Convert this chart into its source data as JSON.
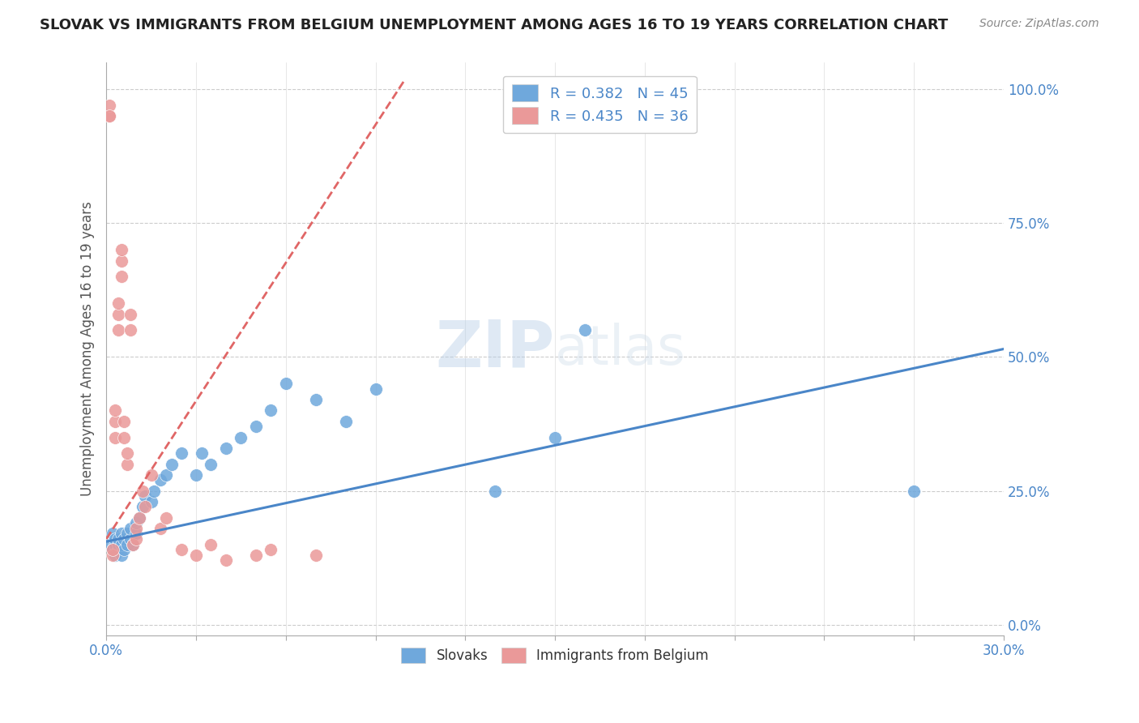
{
  "title": "SLOVAK VS IMMIGRANTS FROM BELGIUM UNEMPLOYMENT AMONG AGES 16 TO 19 YEARS CORRELATION CHART",
  "source_text": "Source: ZipAtlas.com",
  "ylabel": "Unemployment Among Ages 16 to 19 years",
  "right_yticks": [
    0.0,
    0.25,
    0.5,
    0.75,
    1.0
  ],
  "right_yticklabels": [
    "0.0%",
    "25.0%",
    "50.0%",
    "75.0%",
    "100.0%"
  ],
  "legend1_label": "R = 0.382   N = 45",
  "legend2_label": "R = 0.435   N = 36",
  "legend_bottom_label1": "Slovaks",
  "legend_bottom_label2": "Immigrants from Belgium",
  "blue_color": "#6fa8dc",
  "pink_color": "#ea9999",
  "blue_line_color": "#4a86c8",
  "pink_line_color": "#e06666",
  "watermark_text": "ZIPAtlas",
  "xlim": [
    0.0,
    0.3
  ],
  "ylim": [
    -0.02,
    1.05
  ],
  "blue_scatter_x": [
    0.001,
    0.002,
    0.002,
    0.003,
    0.003,
    0.003,
    0.004,
    0.004,
    0.004,
    0.005,
    0.005,
    0.005,
    0.006,
    0.006,
    0.007,
    0.007,
    0.008,
    0.008,
    0.009,
    0.01,
    0.01,
    0.011,
    0.012,
    0.013,
    0.015,
    0.016,
    0.018,
    0.02,
    0.022,
    0.025,
    0.03,
    0.032,
    0.035,
    0.04,
    0.045,
    0.05,
    0.055,
    0.06,
    0.07,
    0.08,
    0.09,
    0.13,
    0.15,
    0.16,
    0.27
  ],
  "blue_scatter_y": [
    0.15,
    0.14,
    0.17,
    0.15,
    0.13,
    0.16,
    0.14,
    0.15,
    0.16,
    0.13,
    0.15,
    0.17,
    0.14,
    0.16,
    0.15,
    0.17,
    0.16,
    0.18,
    0.15,
    0.17,
    0.19,
    0.2,
    0.22,
    0.24,
    0.23,
    0.25,
    0.27,
    0.28,
    0.3,
    0.32,
    0.28,
    0.32,
    0.3,
    0.33,
    0.35,
    0.37,
    0.4,
    0.45,
    0.42,
    0.38,
    0.44,
    0.25,
    0.35,
    0.55,
    0.25
  ],
  "pink_scatter_x": [
    0.001,
    0.001,
    0.001,
    0.002,
    0.002,
    0.003,
    0.003,
    0.003,
    0.004,
    0.004,
    0.004,
    0.005,
    0.005,
    0.005,
    0.006,
    0.006,
    0.007,
    0.007,
    0.008,
    0.008,
    0.009,
    0.01,
    0.01,
    0.011,
    0.012,
    0.013,
    0.015,
    0.018,
    0.02,
    0.025,
    0.03,
    0.035,
    0.04,
    0.05,
    0.055,
    0.07
  ],
  "pink_scatter_y": [
    0.95,
    0.97,
    0.95,
    0.13,
    0.14,
    0.35,
    0.38,
    0.4,
    0.55,
    0.58,
    0.6,
    0.65,
    0.68,
    0.7,
    0.35,
    0.38,
    0.3,
    0.32,
    0.55,
    0.58,
    0.15,
    0.16,
    0.18,
    0.2,
    0.25,
    0.22,
    0.28,
    0.18,
    0.2,
    0.14,
    0.13,
    0.15,
    0.12,
    0.13,
    0.14,
    0.13
  ],
  "blue_trend_x0": 0.0,
  "blue_trend_x1": 0.3,
  "blue_trend_y0": 0.155,
  "blue_trend_y1": 0.515,
  "pink_trend_x0": 0.0,
  "pink_trend_x1": 0.1,
  "pink_trend_y0": 0.16,
  "pink_trend_y1": 1.02
}
